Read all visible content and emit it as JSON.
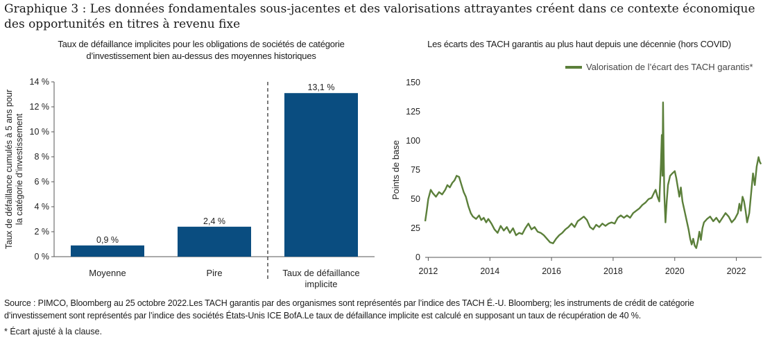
{
  "title": "Graphique 3 : Les données fondamentales sous-jacentes et des valorisations attrayantes créent dans ce contexte économique des opportunités en titres à revenu fixe",
  "source": "Source : PIMCO, Bloomberg au 25 octobre 2022.Les TACH garantis par des organismes sont représentés par l’indice des TACH É.-U. Bloomberg; les instruments de crédit de catégorie d’investissement sont représentés par l’indice des sociétés États-Unis ICE BofA.Le taux de défaillance implicite est calculé en supposant un taux de récupération de 40 %.",
  "footnote": "* Écart ajusté à la clause.",
  "colors": {
    "bar": "#0a4d80",
    "line": "#5b7f3a"
  },
  "chart_data": [
    {
      "type": "bar",
      "title": "Taux de défaillance implicites pour les obligations de sociétés de catégorie d’investissement bien au-dessus des moyennes historiques",
      "ylabel_line1": "Taux de défaillance cumulés à 5 ans pour",
      "ylabel_line2": "la catégorie d’investissement",
      "categories": [
        "Moyenne",
        "Pire",
        "Taux de défaillance implicite"
      ],
      "category_lines": [
        [
          "Moyenne"
        ],
        [
          "Pire"
        ],
        [
          "Taux de défaillance",
          "implicite"
        ]
      ],
      "values": [
        0.9,
        2.4,
        13.1
      ],
      "data_labels": [
        "0,9 %",
        "2,4 %",
        "13,1 %"
      ],
      "yticks": [
        0,
        2,
        4,
        6,
        8,
        10,
        12,
        14
      ],
      "ytick_labels": [
        "0 %",
        "2 %",
        "4 %",
        "6 %",
        "8 %",
        "10 %",
        "12 %",
        "14 %"
      ],
      "ylim": [
        0,
        14
      ],
      "divider_between": [
        1,
        2
      ],
      "grid": false
    },
    {
      "type": "line",
      "title": "Les écarts des TACH garantis au plus haut depuis une décennie (hors COVID)",
      "ylabel": "Points de base",
      "legend_position": "top-right",
      "series": [
        {
          "name": "Valorisation de l’écart des TACH garantis*",
          "points": [
            [
              2011.9,
              31
            ],
            [
              2011.95,
              40
            ],
            [
              2012.0,
              50
            ],
            [
              2012.08,
              58
            ],
            [
              2012.15,
              55
            ],
            [
              2012.25,
              52
            ],
            [
              2012.35,
              56
            ],
            [
              2012.45,
              54
            ],
            [
              2012.55,
              58
            ],
            [
              2012.62,
              62
            ],
            [
              2012.7,
              60
            ],
            [
              2012.78,
              64
            ],
            [
              2012.85,
              66
            ],
            [
              2012.92,
              70
            ],
            [
              2013.0,
              69
            ],
            [
              2013.08,
              62
            ],
            [
              2013.15,
              56
            ],
            [
              2013.22,
              52
            ],
            [
              2013.3,
              44
            ],
            [
              2013.38,
              38
            ],
            [
              2013.45,
              35
            ],
            [
              2013.55,
              33
            ],
            [
              2013.65,
              36
            ],
            [
              2013.72,
              32
            ],
            [
              2013.8,
              34
            ],
            [
              2013.88,
              30
            ],
            [
              2013.95,
              33
            ],
            [
              2014.05,
              29
            ],
            [
              2014.15,
              24
            ],
            [
              2014.25,
              21
            ],
            [
              2014.35,
              27
            ],
            [
              2014.45,
              23
            ],
            [
              2014.55,
              26
            ],
            [
              2014.65,
              21
            ],
            [
              2014.75,
              25
            ],
            [
              2014.85,
              19
            ],
            [
              2014.95,
              21
            ],
            [
              2015.05,
              20
            ],
            [
              2015.15,
              25
            ],
            [
              2015.25,
              29
            ],
            [
              2015.35,
              24
            ],
            [
              2015.45,
              26
            ],
            [
              2015.55,
              22
            ],
            [
              2015.65,
              21
            ],
            [
              2015.75,
              19
            ],
            [
              2015.85,
              16
            ],
            [
              2015.95,
              13
            ],
            [
              2016.05,
              12
            ],
            [
              2016.15,
              16
            ],
            [
              2016.25,
              19
            ],
            [
              2016.35,
              21
            ],
            [
              2016.45,
              24
            ],
            [
              2016.55,
              26
            ],
            [
              2016.65,
              29
            ],
            [
              2016.75,
              26
            ],
            [
              2016.85,
              31
            ],
            [
              2016.95,
              33
            ],
            [
              2017.05,
              35
            ],
            [
              2017.15,
              32
            ],
            [
              2017.25,
              26
            ],
            [
              2017.35,
              24
            ],
            [
              2017.45,
              28
            ],
            [
              2017.55,
              26
            ],
            [
              2017.65,
              29
            ],
            [
              2017.75,
              27
            ],
            [
              2017.85,
              29
            ],
            [
              2017.95,
              30
            ],
            [
              2018.05,
              29
            ],
            [
              2018.15,
              34
            ],
            [
              2018.25,
              36
            ],
            [
              2018.35,
              34
            ],
            [
              2018.45,
              36
            ],
            [
              2018.55,
              34
            ],
            [
              2018.65,
              38
            ],
            [
              2018.75,
              40
            ],
            [
              2018.85,
              42
            ],
            [
              2018.95,
              45
            ],
            [
              2019.05,
              47
            ],
            [
              2019.15,
              50
            ],
            [
              2019.25,
              51
            ],
            [
              2019.32,
              55
            ],
            [
              2019.38,
              58
            ],
            [
              2019.44,
              52
            ],
            [
              2019.5,
              48
            ],
            [
              2019.55,
              80
            ],
            [
              2019.58,
              105
            ],
            [
              2019.6,
              70
            ],
            [
              2019.62,
              133
            ],
            [
              2019.64,
              90
            ],
            [
              2019.66,
              55
            ],
            [
              2019.7,
              30
            ],
            [
              2019.74,
              48
            ],
            [
              2019.78,
              62
            ],
            [
              2019.85,
              70
            ],
            [
              2019.92,
              72
            ],
            [
              2020.0,
              74
            ],
            [
              2020.05,
              68
            ],
            [
              2020.1,
              60
            ],
            [
              2020.15,
              52
            ],
            [
              2020.2,
              60
            ],
            [
              2020.25,
              48
            ],
            [
              2020.3,
              42
            ],
            [
              2020.35,
              36
            ],
            [
              2020.4,
              30
            ],
            [
              2020.45,
              24
            ],
            [
              2020.5,
              16
            ],
            [
              2020.55,
              11
            ],
            [
              2020.6,
              16
            ],
            [
              2020.65,
              10
            ],
            [
              2020.7,
              8
            ],
            [
              2020.75,
              14
            ],
            [
              2020.8,
              22
            ],
            [
              2020.85,
              15
            ],
            [
              2020.9,
              25
            ],
            [
              2020.95,
              30
            ],
            [
              2021.05,
              33
            ],
            [
              2021.15,
              35
            ],
            [
              2021.25,
              31
            ],
            [
              2021.35,
              34
            ],
            [
              2021.45,
              30
            ],
            [
              2021.55,
              34
            ],
            [
              2021.65,
              38
            ],
            [
              2021.75,
              35
            ],
            [
              2021.85,
              30
            ],
            [
              2021.95,
              33
            ],
            [
              2022.05,
              38
            ],
            [
              2022.1,
              46
            ],
            [
              2022.15,
              40
            ],
            [
              2022.2,
              52
            ],
            [
              2022.25,
              48
            ],
            [
              2022.3,
              40
            ],
            [
              2022.35,
              30
            ],
            [
              2022.42,
              38
            ],
            [
              2022.48,
              55
            ],
            [
              2022.54,
              72
            ],
            [
              2022.6,
              62
            ],
            [
              2022.66,
              78
            ],
            [
              2022.72,
              86
            ],
            [
              2022.76,
              82
            ],
            [
              2022.8,
              80
            ]
          ]
        }
      ],
      "xticks": [
        2012,
        2014,
        2016,
        2018,
        2020,
        2022
      ],
      "xtick_labels": [
        "2012",
        "2014",
        "2016",
        "2018",
        "2020",
        "2022"
      ],
      "xlim": [
        2011.9,
        2022.82
      ],
      "yticks": [
        0,
        25,
        50,
        75,
        100,
        125,
        150
      ],
      "ytick_labels": [
        "0",
        "25",
        "50",
        "75",
        "100",
        "125",
        "150"
      ],
      "ylim": [
        0,
        150
      ],
      "grid": false
    }
  ]
}
